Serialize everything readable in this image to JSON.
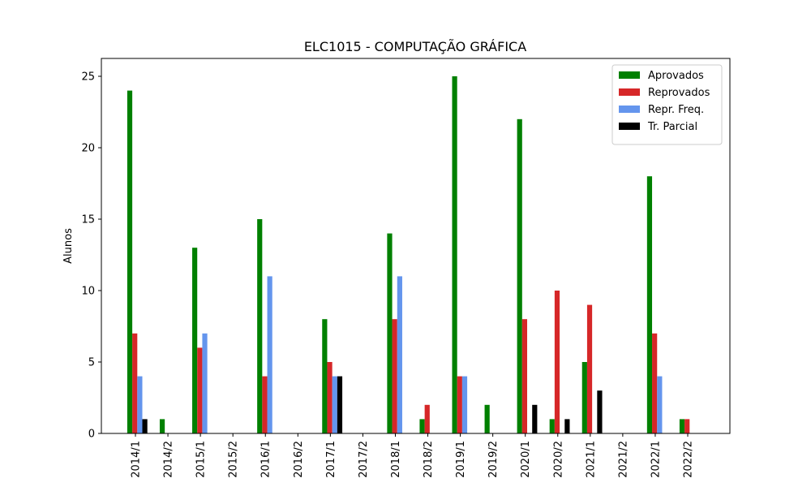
{
  "chart_data": {
    "type": "bar",
    "title": "ELC1015 - COMPUTAÇÃO GRÁFICA",
    "y_label": "Alunos",
    "categories": [
      "2014/1",
      "2014/2",
      "2015/1",
      "2015/2",
      "2016/1",
      "2016/2",
      "2017/1",
      "2017/2",
      "2018/1",
      "2018/2",
      "2019/1",
      "2019/2",
      "2020/1",
      "2020/2",
      "2021/1",
      "2021/2",
      "2022/1",
      "2022/2"
    ],
    "series": [
      {
        "name": "Aprovados",
        "color": "#008000",
        "values": [
          24,
          1,
          13,
          0,
          15,
          0,
          8,
          0,
          14,
          1,
          25,
          2,
          22,
          1,
          5,
          0,
          18,
          1
        ]
      },
      {
        "name": "Reprovados",
        "color": "#d62728",
        "values": [
          7,
          0,
          6,
          0,
          4,
          0,
          5,
          0,
          8,
          2,
          4,
          0,
          8,
          10,
          9,
          0,
          7,
          1
        ]
      },
      {
        "name": "Repr. Freq.",
        "color": "#6495ed",
        "values": [
          4,
          0,
          7,
          0,
          11,
          0,
          4,
          0,
          11,
          0,
          4,
          0,
          0,
          0,
          0,
          0,
          4,
          0
        ]
      },
      {
        "name": "Tr. Parcial",
        "color": "#000000",
        "values": [
          1,
          0,
          0,
          0,
          0,
          0,
          4,
          0,
          0,
          0,
          0,
          0,
          2,
          1,
          3,
          0,
          0,
          0
        ]
      }
    ],
    "ylim": [
      0,
      26.25
    ],
    "yticks": [
      0,
      5,
      10,
      15,
      20,
      25
    ],
    "legend": "upper right"
  }
}
